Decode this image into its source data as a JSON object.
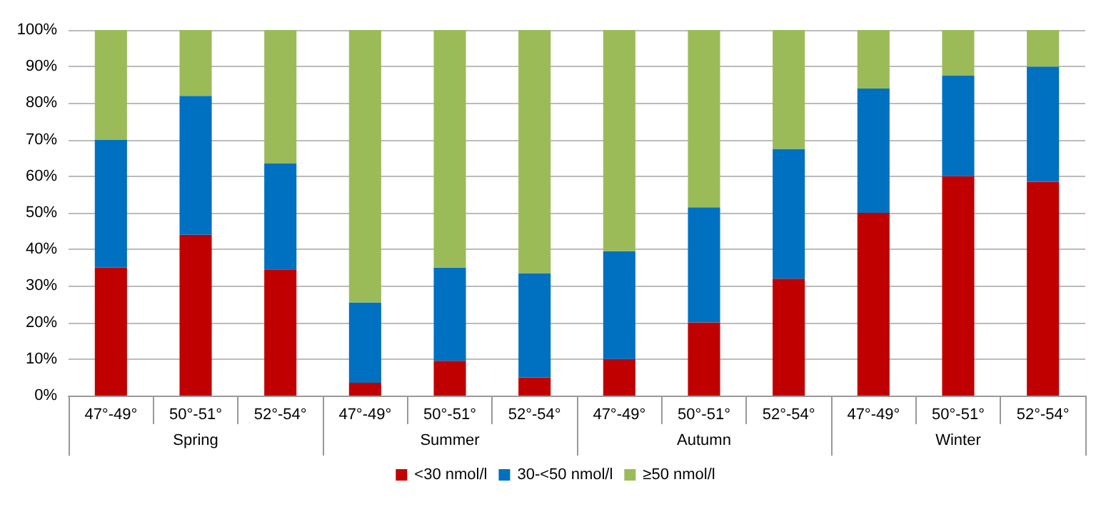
{
  "chart_data": {
    "type": "bar",
    "stacked": true,
    "categories": [
      "47°-49°",
      "50°-51°",
      "52°-54°",
      "47°-49°",
      "50°-51°",
      "52°-54°",
      "47°-49°",
      "50°-51°",
      "52°-54°",
      "47°-49°",
      "50°-51°",
      "52°-54°"
    ],
    "annotations": [
      "Spring",
      "Summer",
      "Autumn",
      "Winter"
    ],
    "series": [
      {
        "name": "<30 nmol/l",
        "color": "#c00000",
        "values": [
          35,
          44,
          34.5,
          3.5,
          9.5,
          5,
          10,
          20,
          32,
          50,
          60,
          58.5
        ]
      },
      {
        "name": "30-<50 nmol/l",
        "color": "#0070c0",
        "values": [
          35,
          38,
          29,
          22,
          25.5,
          28.5,
          29.5,
          31.5,
          35.5,
          34,
          27.5,
          31.5
        ]
      },
      {
        "name": "≥50 nmol/l",
        "color": "#9bbb59",
        "values": [
          30,
          18,
          36.5,
          74.5,
          65,
          66.5,
          60.5,
          48.5,
          32.5,
          16,
          12.5,
          10
        ]
      }
    ],
    "ylim": [
      0,
      100
    ],
    "yticks": [
      {
        "value": 0,
        "label": "0%"
      },
      {
        "value": 10,
        "label": "10%"
      },
      {
        "value": 20,
        "label": "20%"
      },
      {
        "value": 30,
        "label": "30%"
      },
      {
        "value": 40,
        "label": "40%"
      },
      {
        "value": 50,
        "label": "50%"
      },
      {
        "value": 60,
        "label": "60%"
      },
      {
        "value": 70,
        "label": "70%"
      },
      {
        "value": 80,
        "label": "80%"
      },
      {
        "value": 90,
        "label": "90%"
      },
      {
        "value": 100,
        "label": "100%"
      }
    ],
    "grid": "y",
    "legend": "bottom"
  }
}
